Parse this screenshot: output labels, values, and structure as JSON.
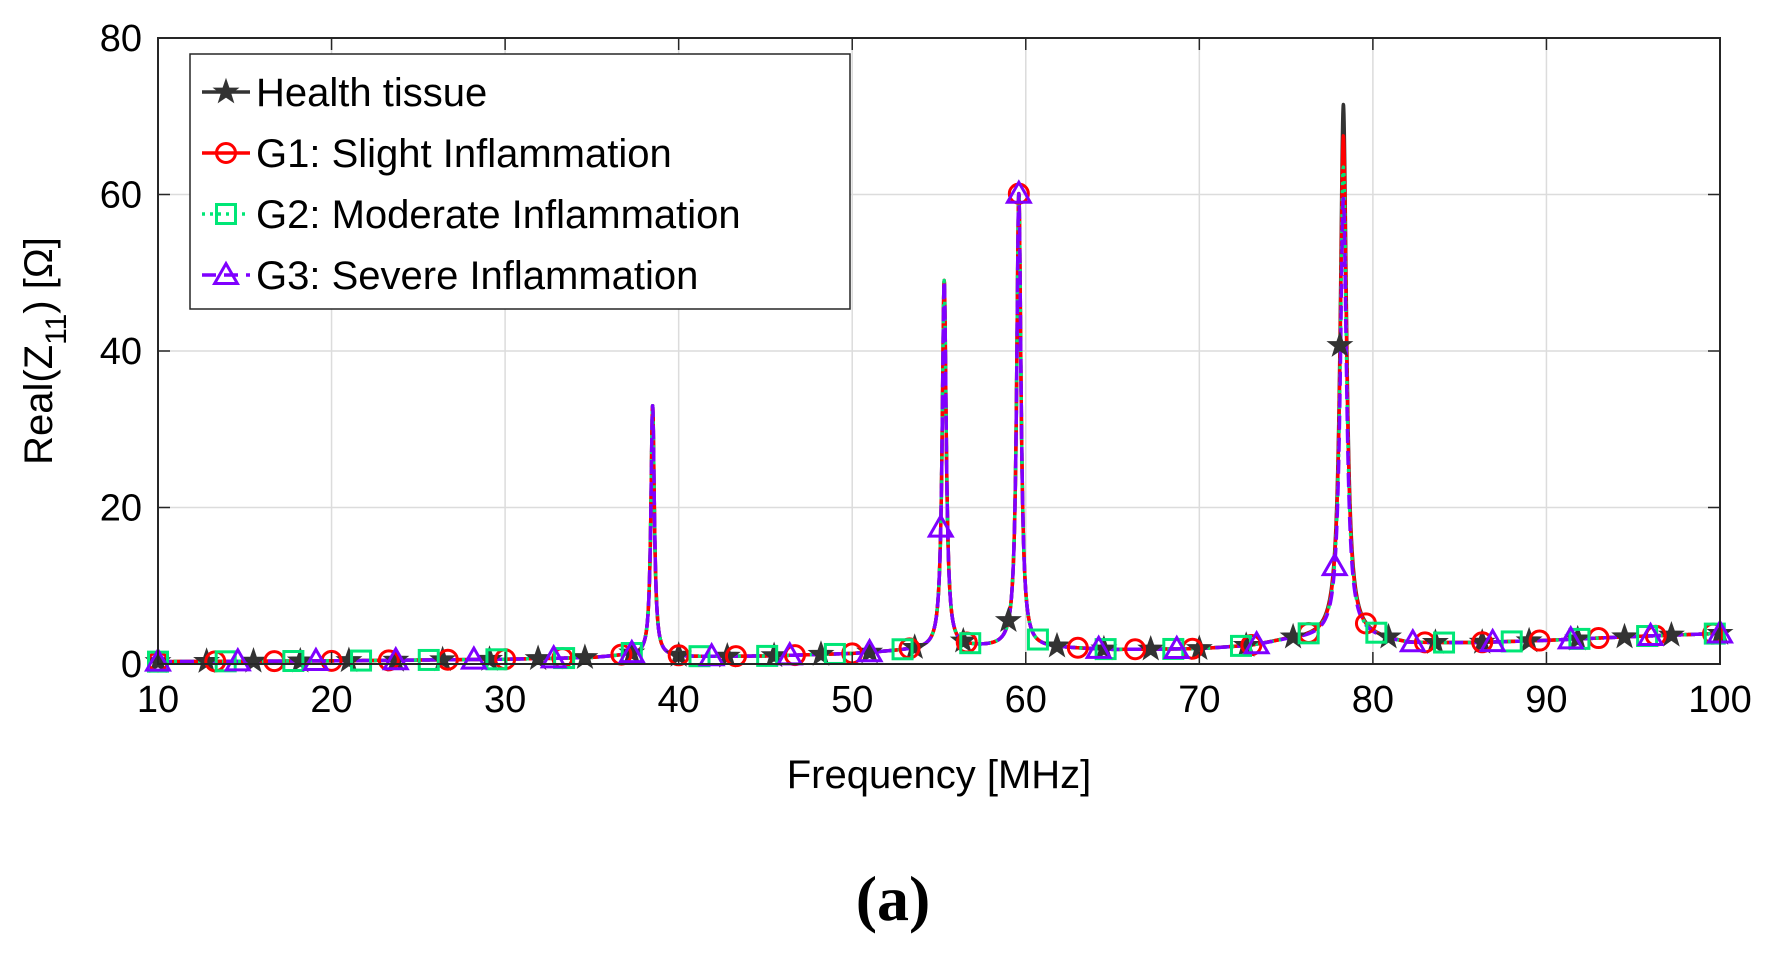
{
  "chart_data": {
    "type": "line",
    "title": "",
    "panel_label": "(a)",
    "xlabel": "Frequency [MHz]",
    "ylabel_main": "Real(Z",
    "ylabel_sub": "11",
    "ylabel_end": ") [Ω]",
    "xlim": [
      10,
      100
    ],
    "ylim": [
      0,
      80
    ],
    "xticks": [
      10,
      20,
      30,
      40,
      50,
      60,
      70,
      80,
      90,
      100
    ],
    "yticks": [
      0,
      20,
      40,
      60,
      80
    ],
    "grid": true,
    "legend_position": "top-left",
    "baseline": [
      [
        10,
        0.3
      ],
      [
        20,
        0.4
      ],
      [
        30,
        0.6
      ],
      [
        35,
        0.8
      ],
      [
        37,
        1.1
      ],
      [
        40,
        0.9
      ],
      [
        45,
        1.0
      ],
      [
        50,
        1.3
      ],
      [
        53,
        1.7
      ],
      [
        57,
        2.1
      ],
      [
        62,
        2.0
      ],
      [
        65,
        1.8
      ],
      [
        70,
        1.9
      ],
      [
        73,
        2.3
      ],
      [
        75,
        3.0
      ],
      [
        79,
        3.6
      ],
      [
        82,
        2.6
      ],
      [
        86,
        2.7
      ],
      [
        90,
        3.0
      ],
      [
        95,
        3.5
      ],
      [
        100,
        3.9
      ]
    ],
    "series": [
      {
        "name": "Health tissue",
        "color": "#333333",
        "marker": "star",
        "dash": "solid",
        "peaks": [
          {
            "f": 38.5,
            "height": 32,
            "width": 0.12
          },
          {
            "f": 55.3,
            "height": 47,
            "width": 0.14
          },
          {
            "f": 59.6,
            "height": 58,
            "width": 0.15
          },
          {
            "f": 78.3,
            "height": 68,
            "width": 0.22
          }
        ],
        "marker_x": [
          10,
          12.8,
          15.5,
          18.2,
          21,
          23.7,
          26.4,
          29.1,
          31.9,
          34.6,
          37.3,
          40,
          42.8,
          45.5,
          48.2,
          51,
          53.6,
          56.4,
          59,
          61.8,
          64.5,
          67.2,
          70,
          72.7,
          75.4,
          78.1,
          80.9,
          83.6,
          86.3,
          89,
          91.8,
          94.5,
          97.2,
          100
        ]
      },
      {
        "name": "G1: Slight Inflammation",
        "color": "#ff0000",
        "marker": "circle",
        "dash": "solid",
        "peaks": [
          {
            "f": 38.5,
            "height": 32,
            "width": 0.12
          },
          {
            "f": 55.3,
            "height": 47,
            "width": 0.14
          },
          {
            "f": 59.6,
            "height": 58,
            "width": 0.15
          },
          {
            "f": 78.3,
            "height": 64,
            "width": 0.22
          }
        ],
        "marker_x": [
          10,
          13.3,
          16.7,
          20,
          23.3,
          26.7,
          30,
          33.3,
          36.7,
          40,
          43.3,
          46.7,
          50,
          53.3,
          56.6,
          59.6,
          63,
          66.3,
          69.6,
          73,
          76.3,
          79.6,
          83,
          86.3,
          89.6,
          93,
          96.3,
          99.6
        ]
      },
      {
        "name": "G2: Moderate Inflammation",
        "color": "#00e676",
        "marker": "square",
        "dash": "dotted",
        "peaks": [
          {
            "f": 38.5,
            "height": 32,
            "width": 0.12
          },
          {
            "f": 55.3,
            "height": 47,
            "width": 0.14
          },
          {
            "f": 59.6,
            "height": 58,
            "width": 0.15
          },
          {
            "f": 78.3,
            "height": 60,
            "width": 0.22
          }
        ],
        "marker_x": [
          10,
          13.9,
          17.8,
          21.7,
          25.6,
          29.5,
          33.4,
          37.3,
          41.2,
          45.1,
          49,
          52.9,
          56.8,
          60.7,
          64.6,
          68.5,
          72.4,
          76.3,
          80.2,
          84.1,
          88,
          91.9,
          95.8,
          99.7
        ]
      },
      {
        "name": "G3: Severe Inflammation",
        "color": "#7f00ff",
        "marker": "triangle",
        "dash": "dashed",
        "peaks": [
          {
            "f": 38.5,
            "height": 32,
            "width": 0.12
          },
          {
            "f": 55.3,
            "height": 47,
            "width": 0.14
          },
          {
            "f": 59.6,
            "height": 58,
            "width": 0.15
          },
          {
            "f": 78.3,
            "height": 56,
            "width": 0.22
          }
        ],
        "marker_x": [
          10,
          14.6,
          19.1,
          23.7,
          28.2,
          32.8,
          37.3,
          41.9,
          46.4,
          51,
          55.1,
          59.6,
          64.2,
          68.7,
          73.3,
          77.8,
          82.3,
          86.9,
          91.4,
          96,
          100
        ]
      }
    ]
  }
}
